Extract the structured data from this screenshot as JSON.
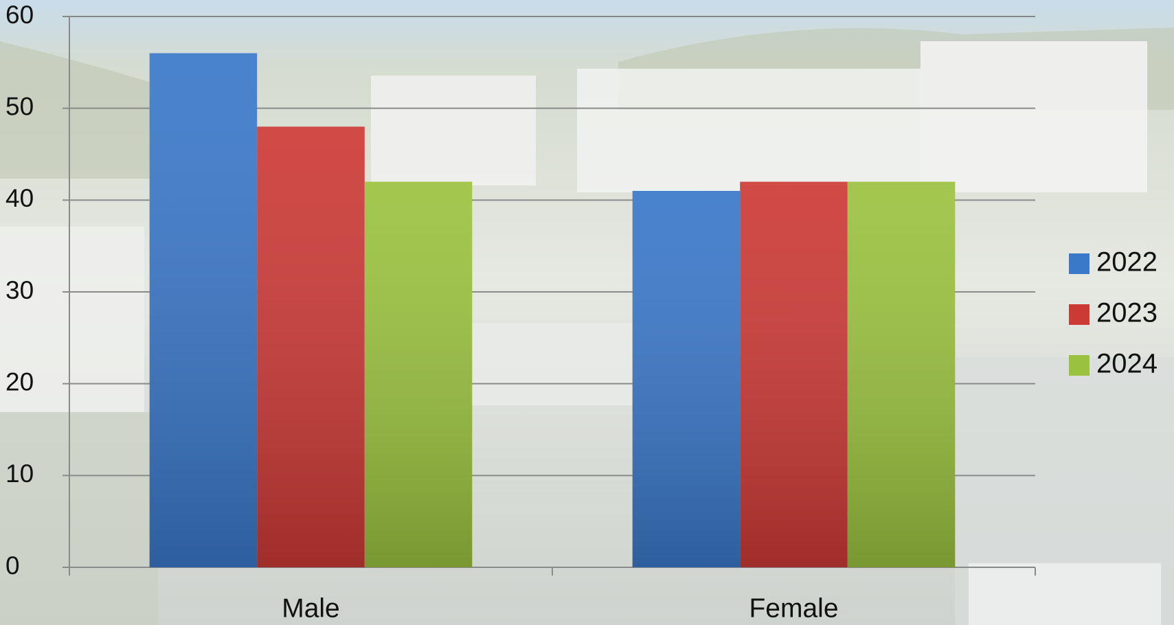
{
  "chart_data": {
    "type": "bar",
    "categories": [
      "Male",
      "Female"
    ],
    "series": [
      {
        "name": "2022",
        "color": "#3a78c9",
        "values": [
          56,
          41
        ]
      },
      {
        "name": "2023",
        "color": "#cc3a36",
        "values": [
          48,
          42
        ]
      },
      {
        "name": "2024",
        "color": "#9bc23f",
        "values": [
          42,
          42
        ]
      }
    ],
    "ylim": [
      0,
      60
    ],
    "yticks": [
      0,
      10,
      20,
      30,
      40,
      50,
      60
    ],
    "grid": true,
    "legend": "right"
  }
}
